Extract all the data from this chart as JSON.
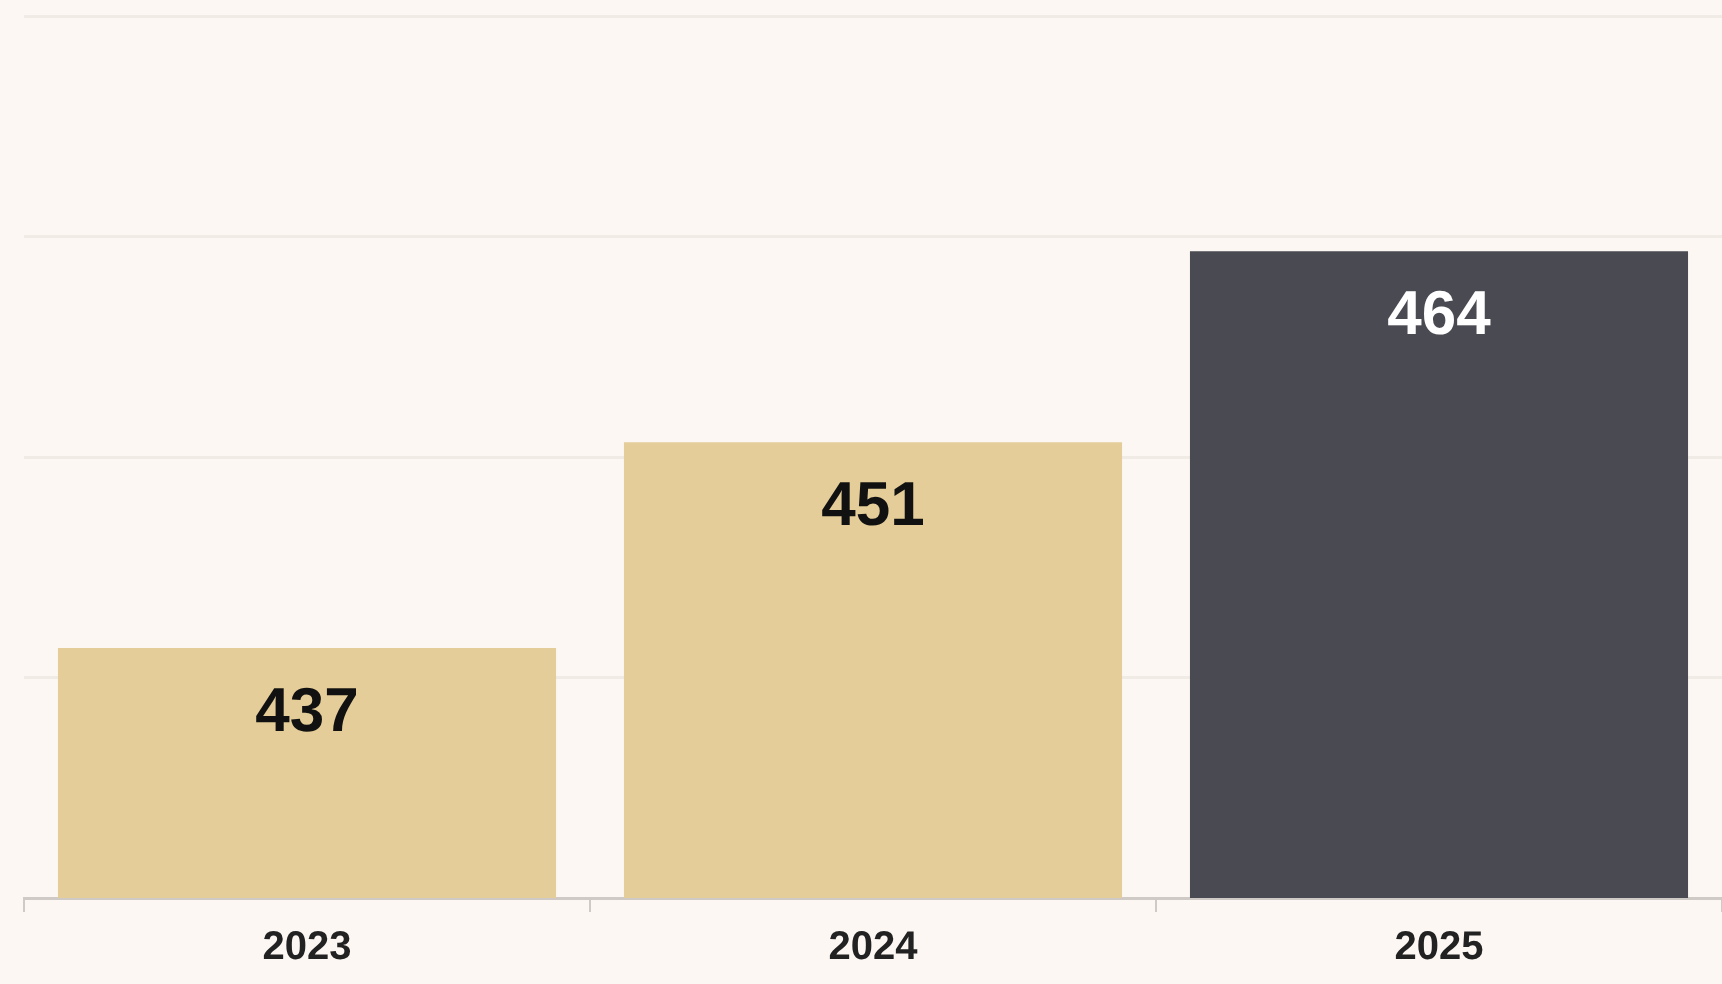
{
  "chart_data": {
    "type": "bar",
    "categories": [
      "2023",
      "2024",
      "2025"
    ],
    "values": [
      437,
      451,
      464
    ],
    "colors": [
      "#e4cd98",
      "#e4cd98",
      "#4a4a52"
    ],
    "ylim": [
      420,
      480
    ],
    "yticks": [
      {
        "value": 420,
        "label": null
      },
      {
        "value": 435,
        "label": null
      },
      {
        "value": 450,
        "label": null
      },
      {
        "value": 465,
        "label": null
      },
      {
        "value": 480,
        "label": null
      }
    ],
    "tick_labels": "x",
    "grid": "y",
    "data_labels": true,
    "legend": false
  }
}
